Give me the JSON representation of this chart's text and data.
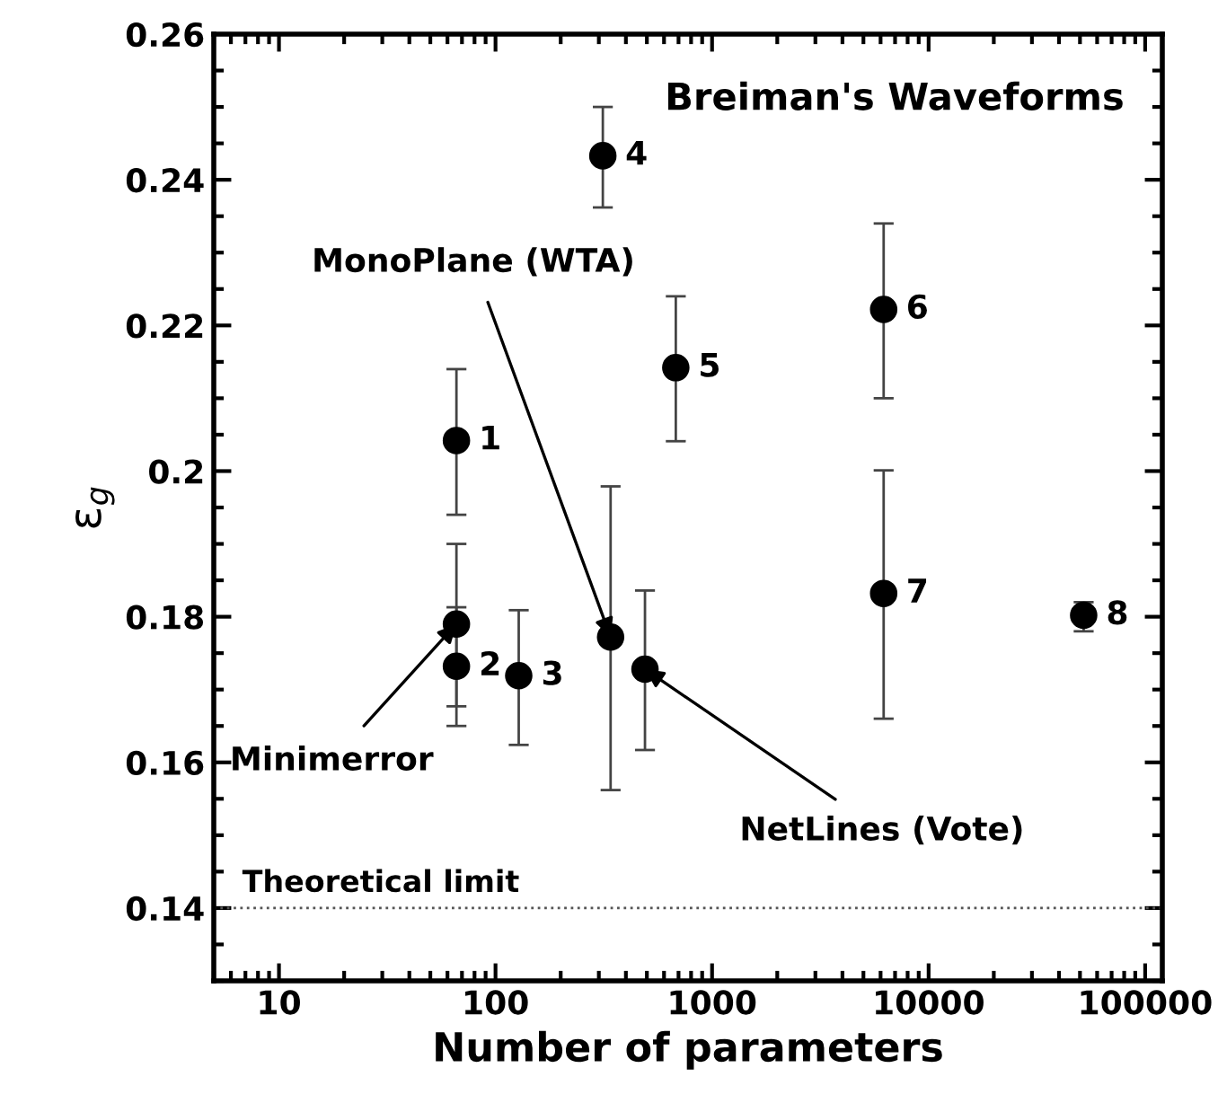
{
  "chart_data": {
    "type": "scatter",
    "title": "Breiman's Waveforms",
    "xlabel": "Number of parameters",
    "ylabel": "ε$_{g}$",
    "series": [
      {
        "color": "#000000",
        "x": [
          66,
          66,
          128,
          313,
          680,
          6200,
          6200,
          52000,
          66,
          340,
          490
        ],
        "values": [
          0.2042,
          0.1732,
          0.1719,
          0.2433,
          0.2142,
          0.2222,
          0.1832,
          0.1802,
          0.179,
          0.1772,
          0.1728
        ],
        "errors": [
          [
            0.194,
            0.214
          ],
          [
            0.165,
            0.1813
          ],
          [
            0.1624,
            0.1809
          ],
          [
            0.2362,
            0.25
          ],
          [
            0.2041,
            0.224
          ],
          [
            0.21,
            0.234
          ],
          [
            0.166,
            0.2001
          ],
          [
            0.178,
            0.182
          ],
          [
            0.1677,
            0.19
          ],
          [
            0.1562,
            0.1979
          ],
          [
            0.1617,
            0.1836
          ]
        ]
      }
    ],
    "annotations": [
      {
        "text": "1",
        "x": 66,
        "y": 0.2042
      },
      {
        "text": "2",
        "x": 66,
        "y": 0.1732
      },
      {
        "text": "3",
        "x": 128,
        "y": 0.1719
      },
      {
        "text": "4",
        "x": 313,
        "y": 0.2433
      },
      {
        "text": "5",
        "x": 680,
        "y": 0.2142
      },
      {
        "text": "6",
        "x": 6200,
        "y": 0.2222
      },
      {
        "text": "7",
        "x": 6200,
        "y": 0.1832
      },
      {
        "text": "8",
        "x": 52000,
        "y": 0.1802
      },
      {
        "text": "Minimerror",
        "x": 66,
        "y": 0.179
      },
      {
        "text": "MonoPlane (WTA)",
        "x": 340,
        "y": 0.1772
      },
      {
        "text": "NetLines (Vote)",
        "x": 490,
        "y": 0.1728
      }
    ],
    "ref_lines": [
      {
        "axis": "y",
        "value": 0.14,
        "label": "Theoretical limit",
        "color": "#555555",
        "line_style": "dotted"
      }
    ],
    "log": "x",
    "xlim": [
      5,
      120000
    ],
    "xticks": [
      10,
      100,
      1000,
      10000,
      100000
    ],
    "ylim": [
      0.13,
      0.26
    ],
    "yticks": [
      0.14,
      0.16,
      0.18,
      0.2,
      0.22,
      0.24,
      0.26
    ],
    "marker": "circle",
    "grid": false,
    "legend": false
  }
}
